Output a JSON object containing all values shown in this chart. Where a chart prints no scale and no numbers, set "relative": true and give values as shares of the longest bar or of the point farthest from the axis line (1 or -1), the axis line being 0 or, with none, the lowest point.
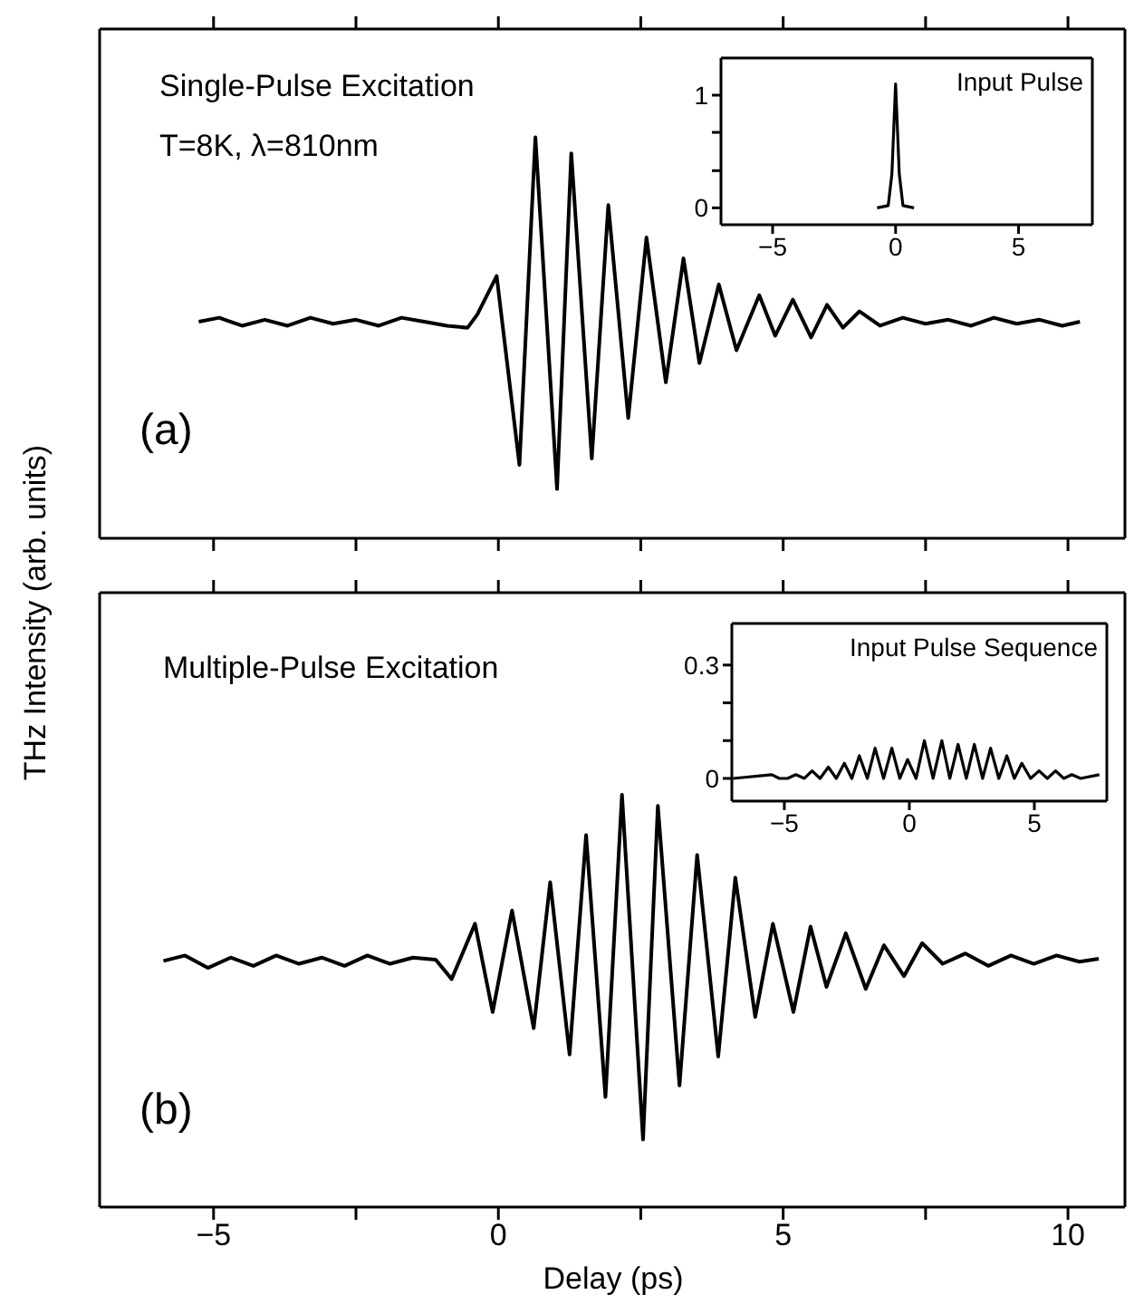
{
  "chart_data": [
    {
      "type": "line",
      "relative": true,
      "xlim": [
        -7,
        11
      ],
      "xticks": [
        -5,
        {
          "value": -2.5,
          "label": null
        },
        0,
        {
          "value": 2.5,
          "label": null
        },
        5,
        {
          "value": 7.5,
          "label": null
        },
        10
      ],
      "tick_labels": false,
      "ylabel": "THz Intensity (arb. units)",
      "annotations": [
        "Single-Pulse Excitation",
        "T=8K, λ=810nm",
        "(a)"
      ],
      "color": "#000000",
      "x": [
        -5.26,
        -4.9,
        -4.5,
        -4.1,
        -3.7,
        -3.3,
        -2.9,
        -2.5,
        -2.1,
        -1.7,
        -1.3,
        -0.9,
        -0.54,
        -0.37,
        -0.03,
        0.37,
        0.65,
        1.03,
        1.28,
        1.64,
        1.93,
        2.28,
        2.6,
        2.94,
        3.25,
        3.53,
        3.87,
        4.18,
        4.58,
        4.86,
        5.17,
        5.49,
        5.77,
        6.05,
        6.34,
        6.7,
        7.1,
        7.5,
        7.9,
        8.3,
        8.7,
        9.1,
        9.5,
        9.9,
        10.21
      ],
      "values": [
        0.54,
        0.55,
        0.53,
        0.545,
        0.53,
        0.55,
        0.535,
        0.545,
        0.53,
        0.55,
        0.54,
        0.53,
        0.525,
        0.558,
        0.654,
        0.183,
        1.0,
        0.123,
        0.96,
        0.199,
        0.831,
        0.3,
        0.75,
        0.389,
        0.698,
        0.437,
        0.633,
        0.469,
        0.606,
        0.505,
        0.595,
        0.501,
        0.582,
        0.525,
        0.566,
        0.53,
        0.55,
        0.535,
        0.545,
        0.53,
        0.55,
        0.535,
        0.545,
        0.53,
        0.54
      ]
    },
    {
      "type": "line",
      "title": "Input Pulse",
      "xlim": [
        -7.1,
        8
      ],
      "xticks": [
        -5,
        0,
        5
      ],
      "ylim": [
        -0.15,
        1.33
      ],
      "yticks": [
        0,
        {
          "value": 0.33,
          "label": null
        },
        {
          "value": 0.67,
          "label": null
        },
        1
      ],
      "color": "#000000",
      "x": [
        -0.75,
        -0.3,
        -0.15,
        0,
        0.15,
        0.3,
        0.75
      ],
      "values": [
        0,
        0.02,
        0.3,
        1.1,
        0.3,
        0.02,
        0
      ]
    },
    {
      "type": "line",
      "relative": true,
      "xlim": [
        -7,
        11
      ],
      "xticks": [
        -5,
        {
          "value": -2.5,
          "label": null
        },
        0,
        {
          "value": 2.5,
          "label": null
        },
        5,
        {
          "value": 7.5,
          "label": null
        },
        10
      ],
      "tick_labels": "x",
      "xlabel": "Delay (ps)",
      "annotations": [
        "Multiple-Pulse Excitation",
        "(b)"
      ],
      "color": "#000000",
      "x": [
        -5.88,
        -5.5,
        -5.1,
        -4.7,
        -4.3,
        -3.9,
        -3.5,
        -3.1,
        -2.7,
        -2.3,
        -1.9,
        -1.5,
        -1.1,
        -0.82,
        -0.41,
        -0.1,
        0.24,
        0.62,
        0.91,
        1.25,
        1.54,
        1.88,
        2.17,
        2.54,
        2.8,
        3.18,
        3.49,
        3.86,
        4.16,
        4.51,
        4.82,
        5.18,
        5.48,
        5.76,
        6.1,
        6.45,
        6.77,
        7.12,
        7.44,
        7.8,
        8.2,
        8.6,
        9.0,
        9.4,
        9.8,
        10.2,
        10.54
      ],
      "values": [
        0.597,
        0.61,
        0.58,
        0.605,
        0.585,
        0.61,
        0.59,
        0.605,
        0.585,
        0.61,
        0.59,
        0.605,
        0.6,
        0.553,
        0.687,
        0.473,
        0.719,
        0.434,
        0.788,
        0.37,
        0.902,
        0.267,
        1.0,
        0.164,
        0.973,
        0.295,
        0.854,
        0.365,
        0.799,
        0.461,
        0.687,
        0.473,
        0.68,
        0.534,
        0.664,
        0.529,
        0.635,
        0.56,
        0.64,
        0.59,
        0.615,
        0.585,
        0.61,
        0.59,
        0.61,
        0.595,
        0.602
      ]
    },
    {
      "type": "line",
      "title": "Input Pulse Sequence",
      "xlim": [
        -7.1,
        7.9
      ],
      "xticks": [
        -5,
        0,
        5
      ],
      "ylim": [
        -0.06,
        0.41
      ],
      "yticks": [
        0,
        {
          "value": 0.1,
          "label": null
        },
        {
          "value": 0.2,
          "label": null
        },
        0.3
      ],
      "color": "#000000",
      "x": [
        -7.05,
        -5.5,
        -5.2,
        -4.87,
        -4.54,
        -4.2,
        -3.89,
        -3.57,
        -3.24,
        -2.92,
        -2.6,
        -2.3,
        -2.0,
        -1.68,
        -1.37,
        -1.03,
        -0.7,
        -0.38,
        -0.07,
        0.27,
        0.6,
        0.95,
        1.3,
        1.62,
        1.95,
        2.28,
        2.6,
        2.93,
        3.25,
        3.58,
        3.9,
        4.2,
        4.5,
        4.85,
        5.19,
        5.52,
        5.85,
        6.18,
        6.5,
        6.85,
        7.6
      ],
      "values": [
        0,
        0.01,
        0,
        0,
        0.01,
        0,
        0.02,
        0,
        0.03,
        0,
        0.04,
        0,
        0.06,
        0,
        0.08,
        0,
        0.08,
        0,
        0.05,
        0,
        0.1,
        0,
        0.1,
        0,
        0.09,
        0,
        0.09,
        0,
        0.08,
        0,
        0.06,
        0,
        0.04,
        0,
        0.02,
        0,
        0.02,
        0,
        0.01,
        0,
        0.01
      ]
    }
  ]
}
